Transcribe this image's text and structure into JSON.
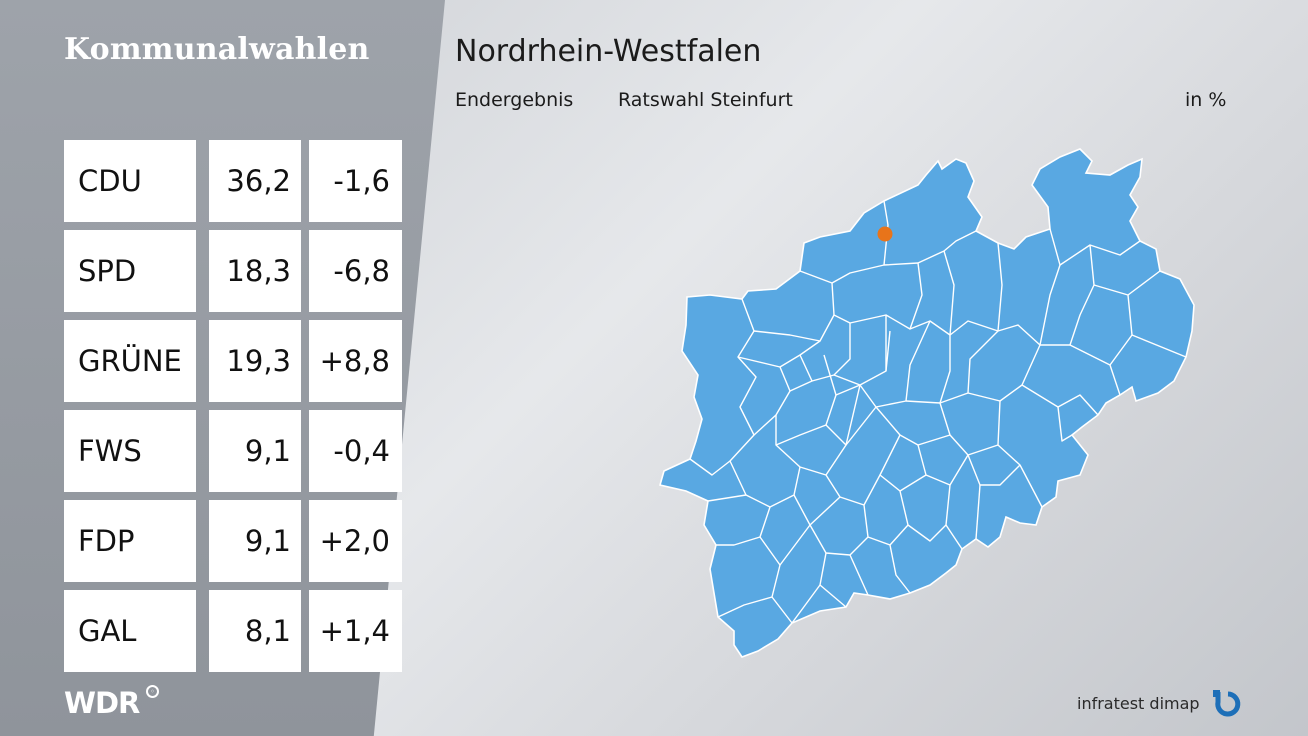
{
  "header": {
    "section_title": "Kommunalwahlen",
    "title": "Nordrhein-Westfalen",
    "result_type": "Endergebnis",
    "election": "Ratswahl Steinfurt",
    "unit": "in %"
  },
  "results": [
    {
      "party": "CDU",
      "value": "36,2",
      "change": "-1,6"
    },
    {
      "party": "SPD",
      "value": "18,3",
      "change": "-6,8"
    },
    {
      "party": "GRÜNE",
      "value": "19,3",
      "change": "+8,8"
    },
    {
      "party": "FWS",
      "value": "9,1",
      "change": "-0,4"
    },
    {
      "party": "FDP",
      "value": "9,1",
      "change": "+2,0"
    },
    {
      "party": "GAL",
      "value": "8,1",
      "change": "+1,4"
    }
  ],
  "map": {
    "fill_color": "#59a8e2",
    "border_color": "#ffffff",
    "highlight_color": "#e8741a"
  },
  "footer": {
    "broadcaster_logo": "WDR",
    "pollster": "infratest dimap"
  }
}
